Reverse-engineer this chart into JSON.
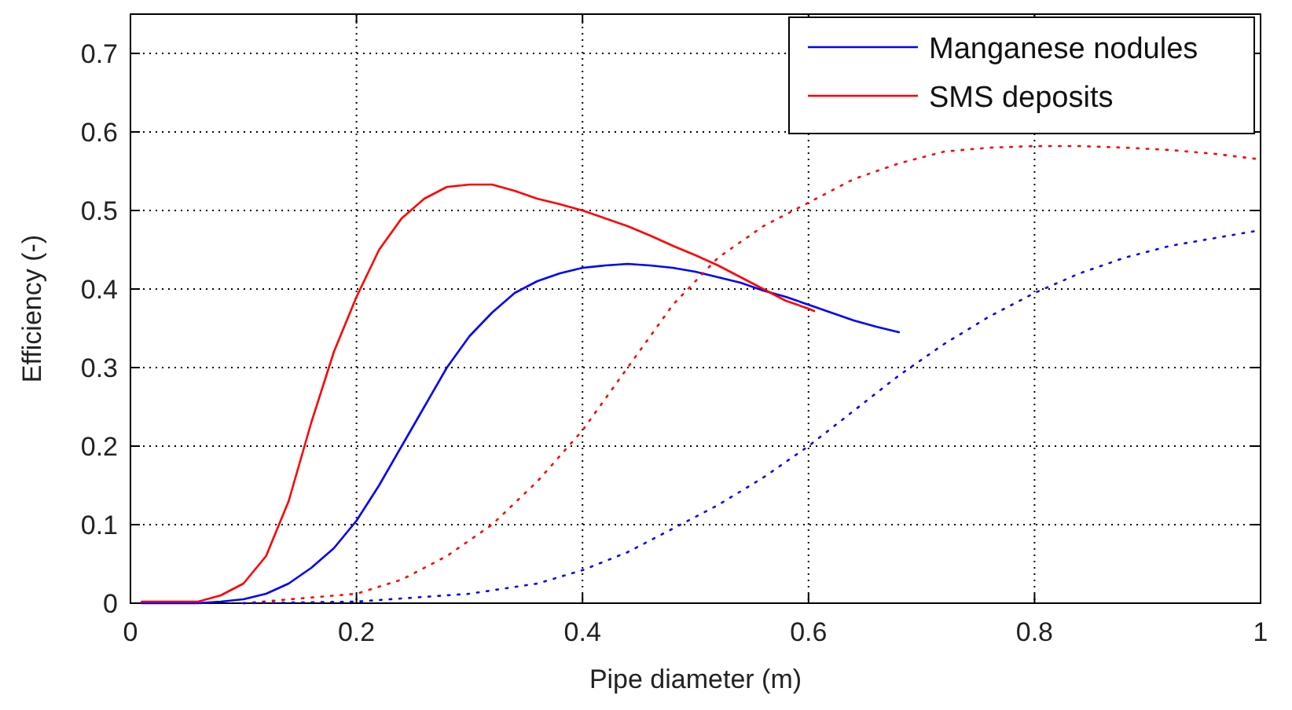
{
  "chart_data": {
    "type": "line",
    "xlabel": "Pipe diameter (m)",
    "ylabel": "Efficiency (-)",
    "xlim": [
      0,
      1
    ],
    "xticks": [
      0,
      0.2,
      0.4,
      0.6,
      0.8,
      1
    ],
    "ylim": [
      0,
      0.75
    ],
    "yticks": [
      0,
      0.1,
      0.2,
      0.3,
      0.4,
      0.5,
      0.6,
      0.7
    ],
    "grid": true,
    "legend": "top right",
    "marker": "none",
    "series": [
      {
        "name": "Manganese nodules",
        "color": "#0000ff",
        "line_style": "solid",
        "x": [
          0.01,
          0.06,
          0.08,
          0.1,
          0.12,
          0.14,
          0.16,
          0.18,
          0.2,
          0.22,
          0.24,
          0.26,
          0.28,
          0.3,
          0.32,
          0.34,
          0.36,
          0.38,
          0.4,
          0.42,
          0.44,
          0.46,
          0.48,
          0.5,
          0.52,
          0.54,
          0.56,
          0.58,
          0.6,
          0.62,
          0.64,
          0.66,
          0.68
        ],
        "values": [
          0,
          0,
          0.002,
          0.005,
          0.012,
          0.025,
          0.045,
          0.07,
          0.105,
          0.15,
          0.2,
          0.25,
          0.3,
          0.34,
          0.37,
          0.395,
          0.41,
          0.42,
          0.427,
          0.43,
          0.432,
          0.43,
          0.427,
          0.422,
          0.415,
          0.408,
          0.398,
          0.39,
          0.38,
          0.37,
          0.36,
          0.352,
          0.345
        ]
      },
      {
        "name": "SMS deposits",
        "color": "#ff0000",
        "line_style": "solid",
        "x": [
          0.01,
          0.06,
          0.08,
          0.1,
          0.12,
          0.14,
          0.16,
          0.18,
          0.2,
          0.22,
          0.24,
          0.26,
          0.28,
          0.3,
          0.32,
          0.34,
          0.36,
          0.38,
          0.4,
          0.42,
          0.44,
          0.46,
          0.48,
          0.5,
          0.52,
          0.54,
          0.56,
          0.58,
          0.6,
          0.605
        ],
        "values": [
          0.002,
          0.002,
          0.01,
          0.025,
          0.06,
          0.13,
          0.23,
          0.32,
          0.39,
          0.45,
          0.49,
          0.515,
          0.53,
          0.533,
          0.533,
          0.525,
          0.515,
          0.508,
          0.5,
          0.49,
          0.48,
          0.468,
          0.455,
          0.443,
          0.43,
          0.415,
          0.4,
          0.385,
          0.375,
          0.372
        ]
      },
      {
        "color": "#ff0000",
        "line_style": "dotted",
        "x": [
          0.1,
          0.2,
          0.24,
          0.28,
          0.32,
          0.36,
          0.4,
          0.44,
          0.48,
          0.52,
          0.56,
          0.6,
          0.64,
          0.68,
          0.72,
          0.76,
          0.8,
          0.84,
          0.88,
          0.92,
          0.96,
          1
        ],
        "values": [
          0,
          0.012,
          0.03,
          0.06,
          0.1,
          0.155,
          0.22,
          0.3,
          0.38,
          0.44,
          0.48,
          0.51,
          0.54,
          0.56,
          0.575,
          0.58,
          0.582,
          0.582,
          0.58,
          0.577,
          0.572,
          0.565
        ]
      },
      {
        "color": "#0000ff",
        "line_style": "dotted",
        "x": [
          0.1,
          0.2,
          0.3,
          0.36,
          0.4,
          0.44,
          0.48,
          0.52,
          0.56,
          0.6,
          0.64,
          0.68,
          0.72,
          0.76,
          0.8,
          0.84,
          0.88,
          0.92,
          0.96,
          1
        ],
        "values": [
          0,
          0.002,
          0.012,
          0.025,
          0.042,
          0.065,
          0.095,
          0.125,
          0.16,
          0.2,
          0.245,
          0.29,
          0.33,
          0.365,
          0.395,
          0.42,
          0.44,
          0.455,
          0.465,
          0.475
        ]
      }
    ]
  }
}
